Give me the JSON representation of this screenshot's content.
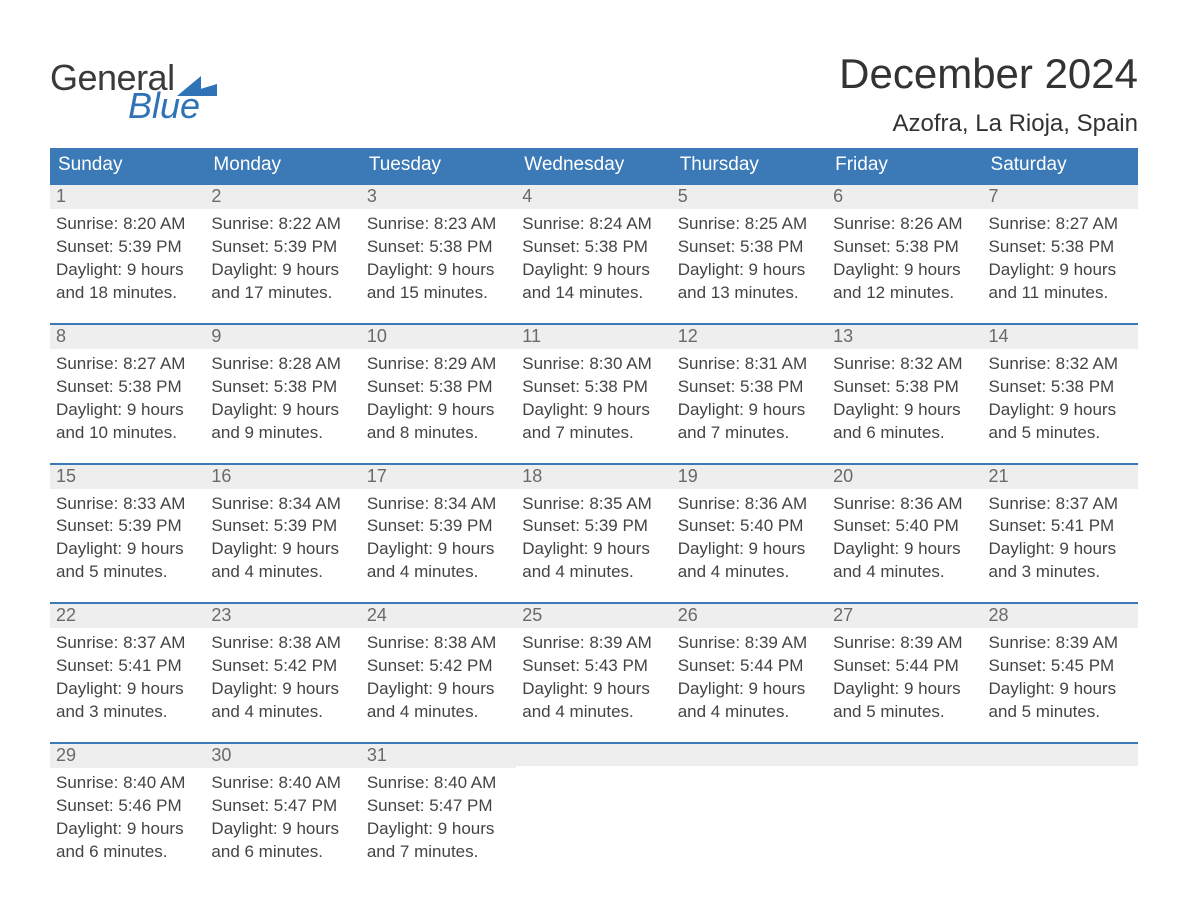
{
  "colors": {
    "header_bg": "#3b79b7",
    "header_text": "#ffffff",
    "daynum_bg": "#eeeeee",
    "daynum_border": "#3b79b7",
    "daynum_text": "#6a6a6a",
    "body_text": "#444444",
    "title_text": "#333333",
    "logo_general": "#3a3a3a",
    "logo_blue": "#2f72b5",
    "page_bg": "#ffffff"
  },
  "logo": {
    "part1": "General",
    "part2": "Blue"
  },
  "title": "December 2024",
  "location": "Azofra, La Rioja, Spain",
  "weekdays": [
    "Sunday",
    "Monday",
    "Tuesday",
    "Wednesday",
    "Thursday",
    "Friday",
    "Saturday"
  ],
  "labels": {
    "sunrise": "Sunrise:",
    "sunset": "Sunset:",
    "daylight": "Daylight:",
    "hours_and": "hours and",
    "minutes": "minutes."
  },
  "weeks": [
    [
      {
        "n": "1",
        "sunrise": "8:20 AM",
        "sunset": "5:39 PM",
        "dl_h": "9",
        "dl_m": "18"
      },
      {
        "n": "2",
        "sunrise": "8:22 AM",
        "sunset": "5:39 PM",
        "dl_h": "9",
        "dl_m": "17"
      },
      {
        "n": "3",
        "sunrise": "8:23 AM",
        "sunset": "5:38 PM",
        "dl_h": "9",
        "dl_m": "15"
      },
      {
        "n": "4",
        "sunrise": "8:24 AM",
        "sunset": "5:38 PM",
        "dl_h": "9",
        "dl_m": "14"
      },
      {
        "n": "5",
        "sunrise": "8:25 AM",
        "sunset": "5:38 PM",
        "dl_h": "9",
        "dl_m": "13"
      },
      {
        "n": "6",
        "sunrise": "8:26 AM",
        "sunset": "5:38 PM",
        "dl_h": "9",
        "dl_m": "12"
      },
      {
        "n": "7",
        "sunrise": "8:27 AM",
        "sunset": "5:38 PM",
        "dl_h": "9",
        "dl_m": "11"
      }
    ],
    [
      {
        "n": "8",
        "sunrise": "8:27 AM",
        "sunset": "5:38 PM",
        "dl_h": "9",
        "dl_m": "10"
      },
      {
        "n": "9",
        "sunrise": "8:28 AM",
        "sunset": "5:38 PM",
        "dl_h": "9",
        "dl_m": "9"
      },
      {
        "n": "10",
        "sunrise": "8:29 AM",
        "sunset": "5:38 PM",
        "dl_h": "9",
        "dl_m": "8"
      },
      {
        "n": "11",
        "sunrise": "8:30 AM",
        "sunset": "5:38 PM",
        "dl_h": "9",
        "dl_m": "7"
      },
      {
        "n": "12",
        "sunrise": "8:31 AM",
        "sunset": "5:38 PM",
        "dl_h": "9",
        "dl_m": "7"
      },
      {
        "n": "13",
        "sunrise": "8:32 AM",
        "sunset": "5:38 PM",
        "dl_h": "9",
        "dl_m": "6"
      },
      {
        "n": "14",
        "sunrise": "8:32 AM",
        "sunset": "5:38 PM",
        "dl_h": "9",
        "dl_m": "5"
      }
    ],
    [
      {
        "n": "15",
        "sunrise": "8:33 AM",
        "sunset": "5:39 PM",
        "dl_h": "9",
        "dl_m": "5"
      },
      {
        "n": "16",
        "sunrise": "8:34 AM",
        "sunset": "5:39 PM",
        "dl_h": "9",
        "dl_m": "4"
      },
      {
        "n": "17",
        "sunrise": "8:34 AM",
        "sunset": "5:39 PM",
        "dl_h": "9",
        "dl_m": "4"
      },
      {
        "n": "18",
        "sunrise": "8:35 AM",
        "sunset": "5:39 PM",
        "dl_h": "9",
        "dl_m": "4"
      },
      {
        "n": "19",
        "sunrise": "8:36 AM",
        "sunset": "5:40 PM",
        "dl_h": "9",
        "dl_m": "4"
      },
      {
        "n": "20",
        "sunrise": "8:36 AM",
        "sunset": "5:40 PM",
        "dl_h": "9",
        "dl_m": "4"
      },
      {
        "n": "21",
        "sunrise": "8:37 AM",
        "sunset": "5:41 PM",
        "dl_h": "9",
        "dl_m": "3"
      }
    ],
    [
      {
        "n": "22",
        "sunrise": "8:37 AM",
        "sunset": "5:41 PM",
        "dl_h": "9",
        "dl_m": "3"
      },
      {
        "n": "23",
        "sunrise": "8:38 AM",
        "sunset": "5:42 PM",
        "dl_h": "9",
        "dl_m": "4"
      },
      {
        "n": "24",
        "sunrise": "8:38 AM",
        "sunset": "5:42 PM",
        "dl_h": "9",
        "dl_m": "4"
      },
      {
        "n": "25",
        "sunrise": "8:39 AM",
        "sunset": "5:43 PM",
        "dl_h": "9",
        "dl_m": "4"
      },
      {
        "n": "26",
        "sunrise": "8:39 AM",
        "sunset": "5:44 PM",
        "dl_h": "9",
        "dl_m": "4"
      },
      {
        "n": "27",
        "sunrise": "8:39 AM",
        "sunset": "5:44 PM",
        "dl_h": "9",
        "dl_m": "5"
      },
      {
        "n": "28",
        "sunrise": "8:39 AM",
        "sunset": "5:45 PM",
        "dl_h": "9",
        "dl_m": "5"
      }
    ],
    [
      {
        "n": "29",
        "sunrise": "8:40 AM",
        "sunset": "5:46 PM",
        "dl_h": "9",
        "dl_m": "6"
      },
      {
        "n": "30",
        "sunrise": "8:40 AM",
        "sunset": "5:47 PM",
        "dl_h": "9",
        "dl_m": "6"
      },
      {
        "n": "31",
        "sunrise": "8:40 AM",
        "sunset": "5:47 PM",
        "dl_h": "9",
        "dl_m": "7"
      },
      {
        "empty": true
      },
      {
        "empty": true
      },
      {
        "empty": true
      },
      {
        "empty": true
      }
    ]
  ]
}
